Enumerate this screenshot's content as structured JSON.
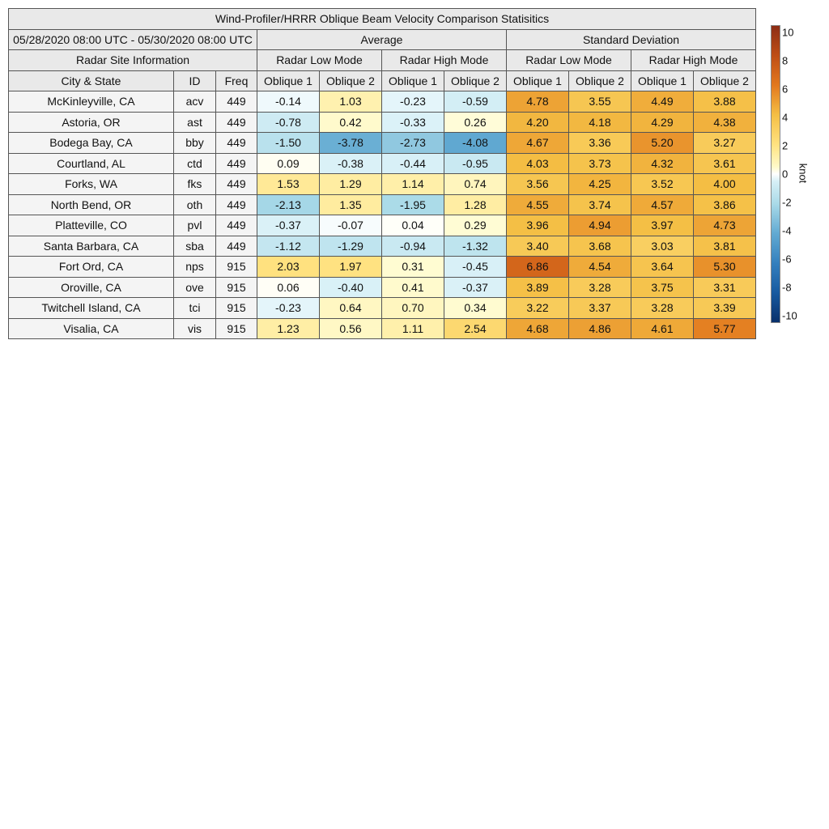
{
  "title": "Wind-Profiler/HRRR Oblique Beam Velocity Comparison Statisitics",
  "date_range": "05/28/2020 08:00 UTC - 05/30/2020 08:00 UTC",
  "groups": {
    "average": "Average",
    "std": "Standard Deviation"
  },
  "site_info_label": "Radar Site Information",
  "modes": {
    "low": "Radar Low Mode",
    "high": "Radar High Mode"
  },
  "columns": {
    "city": "City & State",
    "id": "ID",
    "freq": "Freq",
    "oblique1": "Oblique 1",
    "oblique2": "Oblique 2"
  },
  "colorbar": {
    "unit": "knot",
    "min": -10,
    "max": 10,
    "ticks": [
      "10",
      "8",
      "6",
      "4",
      "2",
      "0",
      "-2",
      "-4",
      "-6",
      "-8",
      "-10"
    ]
  },
  "chart_data": {
    "type": "heatmap",
    "title": "Wind-Profiler/HRRR Oblique Beam Velocity Comparison Statisitics",
    "unit": "knot",
    "colorbar_range": [
      -10,
      10
    ],
    "value_columns": [
      "Average Radar Low Mode Oblique 1",
      "Average Radar Low Mode Oblique 2",
      "Average Radar High Mode Oblique 1",
      "Average Radar High Mode Oblique 2",
      "Standard Deviation Radar Low Mode Oblique 1",
      "Standard Deviation Radar Low Mode Oblique 2",
      "Standard Deviation Radar High Mode Oblique 1",
      "Standard Deviation Radar High Mode Oblique 2"
    ],
    "rows": [
      {
        "city": "McKinleyville, CA",
        "id": "acv",
        "freq": "449",
        "values": [
          "-0.14",
          "1.03",
          "-0.23",
          "-0.59",
          "4.78",
          "3.55",
          "4.49",
          "3.88"
        ]
      },
      {
        "city": "Astoria, OR",
        "id": "ast",
        "freq": "449",
        "values": [
          "-0.78",
          "0.42",
          "-0.33",
          "0.26",
          "4.20",
          "4.18",
          "4.29",
          "4.38"
        ]
      },
      {
        "city": "Bodega Bay, CA",
        "id": "bby",
        "freq": "449",
        "values": [
          "-1.50",
          "-3.78",
          "-2.73",
          "-4.08",
          "4.67",
          "3.36",
          "5.20",
          "3.27"
        ]
      },
      {
        "city": "Courtland, AL",
        "id": "ctd",
        "freq": "449",
        "values": [
          "0.09",
          "-0.38",
          "-0.44",
          "-0.95",
          "4.03",
          "3.73",
          "4.32",
          "3.61"
        ]
      },
      {
        "city": "Forks, WA",
        "id": "fks",
        "freq": "449",
        "values": [
          "1.53",
          "1.29",
          "1.14",
          "0.74",
          "3.56",
          "4.25",
          "3.52",
          "4.00"
        ]
      },
      {
        "city": "North Bend, OR",
        "id": "oth",
        "freq": "449",
        "values": [
          "-2.13",
          "1.35",
          "-1.95",
          "1.28",
          "4.55",
          "3.74",
          "4.57",
          "3.86"
        ]
      },
      {
        "city": "Platteville, CO",
        "id": "pvl",
        "freq": "449",
        "values": [
          "-0.37",
          "-0.07",
          "0.04",
          "0.29",
          "3.96",
          "4.94",
          "3.97",
          "4.73"
        ]
      },
      {
        "city": "Santa Barbara, CA",
        "id": "sba",
        "freq": "449",
        "values": [
          "-1.12",
          "-1.29",
          "-0.94",
          "-1.32",
          "3.40",
          "3.68",
          "3.03",
          "3.81"
        ]
      },
      {
        "city": "Fort Ord, CA",
        "id": "nps",
        "freq": "915",
        "values": [
          "2.03",
          "1.97",
          "0.31",
          "-0.45",
          "6.86",
          "4.54",
          "3.64",
          "5.30"
        ]
      },
      {
        "city": "Oroville, CA",
        "id": "ove",
        "freq": "915",
        "values": [
          "0.06",
          "-0.40",
          "0.41",
          "-0.37",
          "3.89",
          "3.28",
          "3.75",
          "3.31"
        ]
      },
      {
        "city": "Twitchell Island, CA",
        "id": "tci",
        "freq": "915",
        "values": [
          "-0.23",
          "0.64",
          "0.70",
          "0.34",
          "3.22",
          "3.37",
          "3.28",
          "3.39"
        ]
      },
      {
        "city": "Visalia, CA",
        "id": "vis",
        "freq": "915",
        "values": [
          "1.23",
          "0.56",
          "1.11",
          "2.54",
          "4.68",
          "4.86",
          "4.61",
          "5.77"
        ]
      }
    ]
  }
}
